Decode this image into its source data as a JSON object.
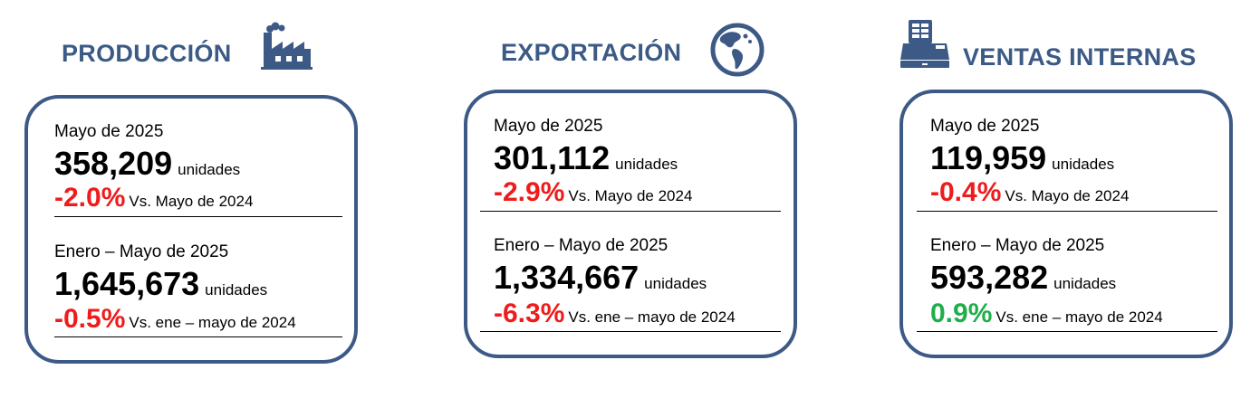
{
  "colors": {
    "title": "#3c5a86",
    "border": "#3d5a86",
    "negative": "#ee1c1c",
    "positive": "#1fae4b"
  },
  "produccion": {
    "title": "PRODUCCIÓN",
    "icon": "factory-icon",
    "month": {
      "period": "Mayo de 2025",
      "value": "358,209",
      "unit": "unidades",
      "change": "-2.0%",
      "trend": "negative",
      "comparison": "Vs. Mayo de 2024"
    },
    "ytd": {
      "period": "Enero – Mayo de 2025",
      "value": "1,645,673",
      "unit": "unidades",
      "change": "-0.5%",
      "trend": "negative",
      "comparison": "Vs. ene – mayo de 2024"
    }
  },
  "exportacion": {
    "title": "EXPORTACIÓN",
    "icon": "globe-icon",
    "month": {
      "period": "Mayo de 2025",
      "value": "301,112",
      "unit": "unidades",
      "change": "-2.9%",
      "trend": "negative",
      "comparison": "Vs. Mayo de 2024"
    },
    "ytd": {
      "period": "Enero – Mayo de 2025",
      "value": "1,334,667",
      "unit": "unidades",
      "change": "-6.3%",
      "trend": "negative",
      "comparison": "Vs. ene – mayo de 2024"
    }
  },
  "ventas": {
    "title": "VENTAS INTERNAS",
    "icon": "cash-register-icon",
    "month": {
      "period": "Mayo de 2025",
      "value": "119,959",
      "unit": "unidades",
      "change": "-0.4%",
      "trend": "negative",
      "comparison": "Vs. Mayo de 2024"
    },
    "ytd": {
      "period": "Enero – Mayo de 2025",
      "value": "593,282",
      "unit": "unidades",
      "change": "0.9%",
      "trend": "positive",
      "comparison": "Vs. ene – mayo de 2024"
    }
  }
}
